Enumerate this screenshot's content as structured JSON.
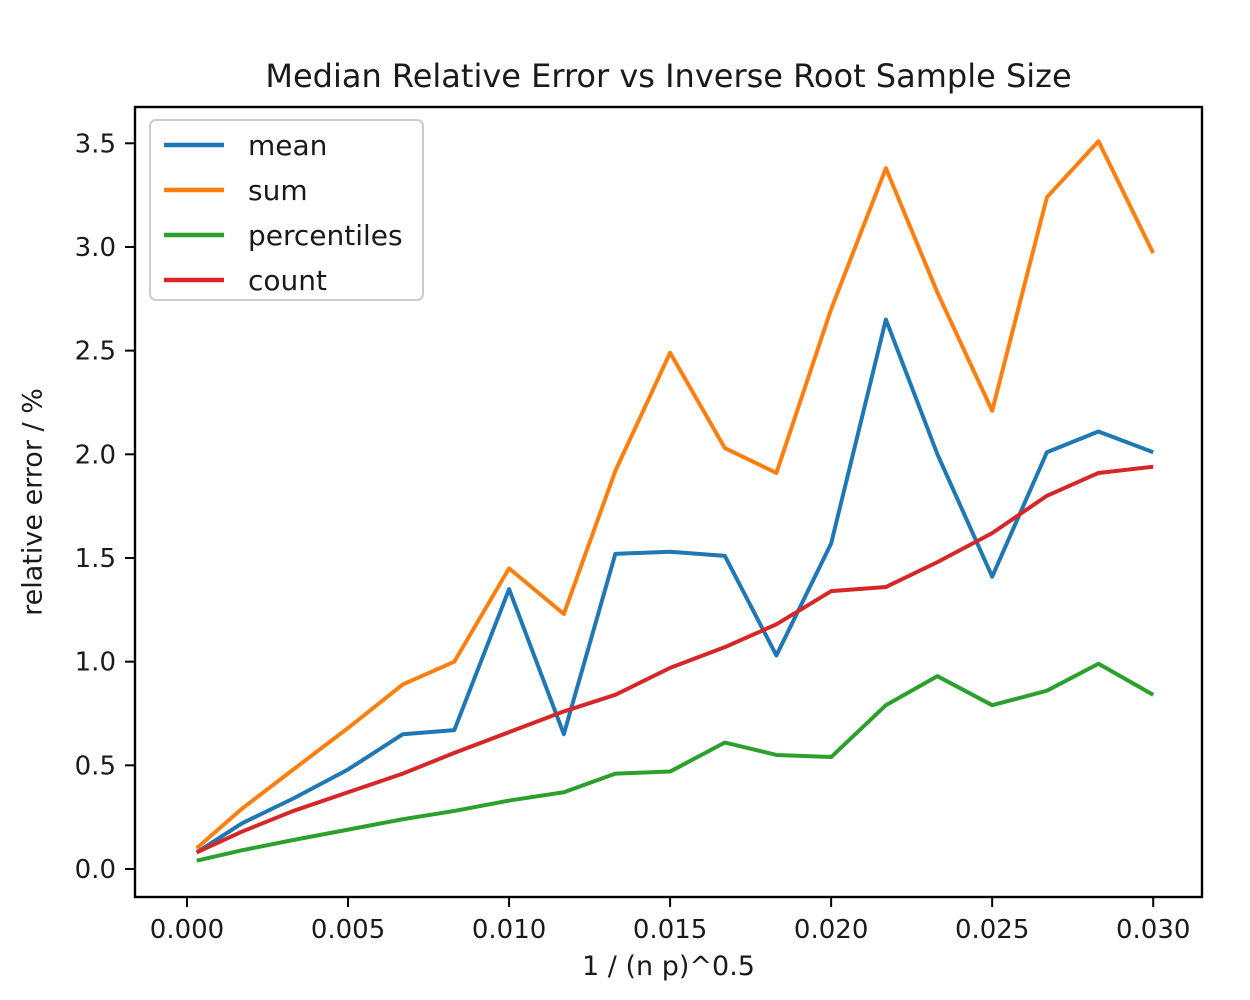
{
  "figure": {
    "background": "#ffffff",
    "spine_color": "#000000",
    "text_color": "#1a1a1a",
    "legend_border_color": "#cccccc"
  },
  "chart_data": {
    "type": "line",
    "title": "Median Relative Error vs Inverse Root Sample Size",
    "xlabel": "1 / (n p)^0.5",
    "ylabel": "relative error / %",
    "grid": false,
    "legend_position": "upper left",
    "xlim": [
      -0.001615,
      0.031515
    ],
    "ylim": [
      -0.135,
      3.675
    ],
    "x_ticks": {
      "values": [
        0.0,
        0.005,
        0.01,
        0.015,
        0.02,
        0.025,
        0.03
      ],
      "labels": [
        "0.000",
        "0.005",
        "0.010",
        "0.015",
        "0.020",
        "0.025",
        "0.030"
      ]
    },
    "y_ticks": {
      "values": [
        0.0,
        0.5,
        1.0,
        1.5,
        2.0,
        2.5,
        3.0,
        3.5
      ],
      "labels": [
        "0.0",
        "0.5",
        "1.0",
        "1.5",
        "2.0",
        "2.5",
        "3.0",
        "3.5"
      ]
    },
    "x": [
      0.0003,
      0.0017,
      0.0033,
      0.005,
      0.0067,
      0.0083,
      0.01,
      0.0117,
      0.0133,
      0.015,
      0.0167,
      0.0183,
      0.02,
      0.0217,
      0.0233,
      0.025,
      0.0267,
      0.0283,
      0.03
    ],
    "series": [
      {
        "name": "mean",
        "color": "#1f77b4",
        "values": [
          0.08,
          0.22,
          0.34,
          0.48,
          0.65,
          0.67,
          1.35,
          0.65,
          1.52,
          1.53,
          1.51,
          1.03,
          1.57,
          2.65,
          2.0,
          1.41,
          2.01,
          2.11,
          2.01
        ]
      },
      {
        "name": "sum",
        "color": "#ff7f0e",
        "values": [
          0.1,
          0.29,
          0.48,
          0.68,
          0.89,
          1.0,
          1.45,
          1.23,
          1.92,
          2.49,
          2.03,
          1.91,
          2.7,
          3.38,
          2.78,
          2.21,
          3.24,
          3.51,
          2.97
        ]
      },
      {
        "name": "percentiles",
        "color": "#2ca02c",
        "values": [
          0.04,
          0.09,
          0.14,
          0.19,
          0.24,
          0.28,
          0.33,
          0.37,
          0.46,
          0.47,
          0.61,
          0.55,
          0.54,
          0.79,
          0.93,
          0.79,
          0.86,
          0.99,
          0.84
        ]
      },
      {
        "name": "count",
        "color": "#d62728",
        "values": [
          0.08,
          0.18,
          0.28,
          0.37,
          0.46,
          0.56,
          0.66,
          0.76,
          0.84,
          0.97,
          1.07,
          1.18,
          1.34,
          1.36,
          1.48,
          1.62,
          1.8,
          1.91,
          1.94
        ]
      }
    ]
  }
}
